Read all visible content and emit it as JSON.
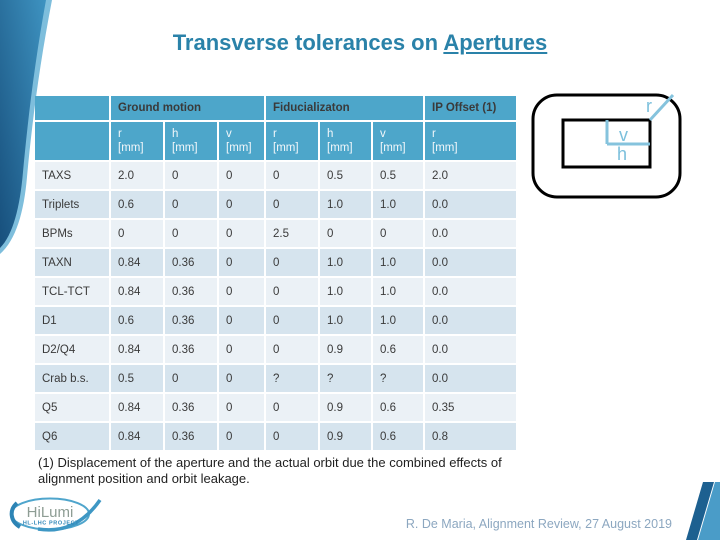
{
  "slide": {
    "title": {
      "prefix": "Transverse tolerances on ",
      "underlined": "Apertures"
    },
    "footnote": "(1) Displacement of the aperture and the actual orbit due the combined effects of alignment position and orbit leakage.",
    "credit": "R. De Maria, Alignment Review, 27 August 2019"
  },
  "table": {
    "groups": [
      {
        "label": "Ground motion",
        "span": 3
      },
      {
        "label": "Fiducializaton",
        "span": 3
      },
      {
        "label": "IP Offset (1)",
        "span": 1
      }
    ],
    "unit": "[mm]",
    "sub_columns": [
      "r",
      "h",
      "v",
      "r",
      "h",
      "v",
      "r"
    ],
    "rows": [
      {
        "label": "TAXS",
        "values": [
          "2.0",
          "0",
          "0",
          "0",
          "0.5",
          "0.5",
          "2.0"
        ]
      },
      {
        "label": "Triplets",
        "values": [
          "0.6",
          "0",
          "0",
          "0",
          "1.0",
          "1.0",
          "0.0"
        ]
      },
      {
        "label": "BPMs",
        "values": [
          "0",
          "0",
          "0",
          "2.5",
          "0",
          "0",
          "0.0"
        ]
      },
      {
        "label": "TAXN",
        "values": [
          "0.84",
          "0.36",
          "0",
          "0",
          "1.0",
          "1.0",
          "0.0"
        ]
      },
      {
        "label": "TCL-TCT",
        "values": [
          "0.84",
          "0.36",
          "0",
          "0",
          "1.0",
          "1.0",
          "0.0"
        ]
      },
      {
        "label": "D1",
        "values": [
          "0.6",
          "0.36",
          "0",
          "0",
          "1.0",
          "1.0",
          "0.0"
        ]
      },
      {
        "label": "D2/Q4",
        "values": [
          "0.84",
          "0.36",
          "0",
          "0",
          "0.9",
          "0.6",
          "0.0"
        ]
      },
      {
        "label": "Crab b.s.",
        "values": [
          "0.5",
          "0",
          "0",
          "?",
          "?",
          "?",
          "0.0"
        ]
      },
      {
        "label": "Q5",
        "values": [
          "0.84",
          "0.36",
          "0",
          "0",
          "0.9",
          "0.6",
          "0.35"
        ]
      },
      {
        "label": "Q6",
        "values": [
          "0.84",
          "0.36",
          "0",
          "0",
          "0.9",
          "0.6",
          "0.8"
        ]
      }
    ]
  },
  "diagram": {
    "labels": {
      "r": "r",
      "v": "v",
      "h": "h"
    }
  },
  "logo": {
    "name": "HiLumi",
    "subtitle": "HL-LHC  PROJECT"
  },
  "colors": {
    "header_blue": "#4DA6CA",
    "row_light": "#EBF1F6",
    "row_alt": "#D6E4EE",
    "title_teal": "#2A82A9",
    "diagram_label_blue": "#7CC0DC",
    "credit_blue_gray": "#8CA7C0",
    "swoosh_dark": "#1B5C8B",
    "swoosh_light": "#7EBEDC"
  }
}
